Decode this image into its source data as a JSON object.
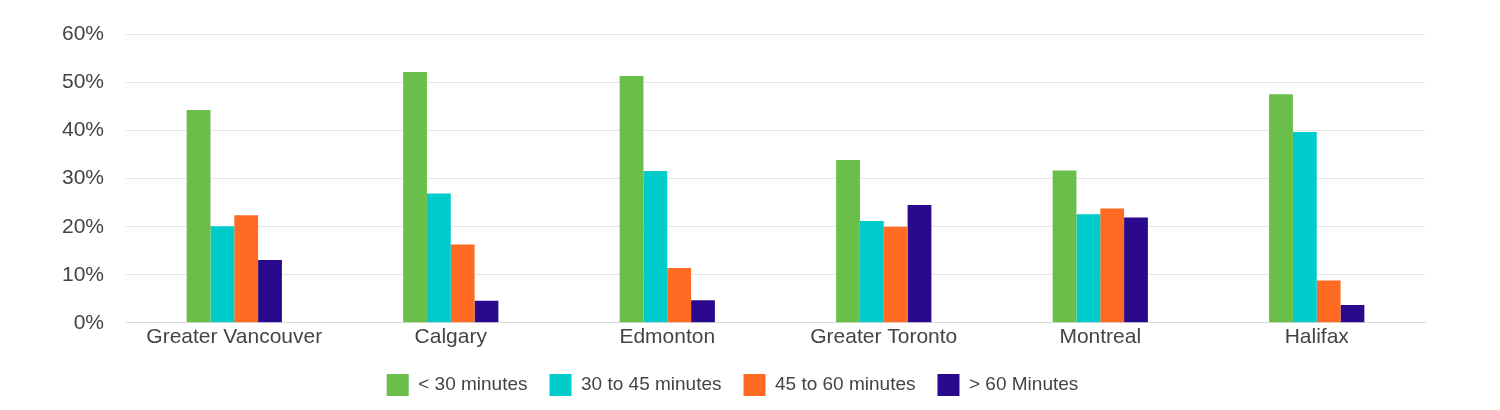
{
  "chart_data": {
    "type": "bar",
    "categories": [
      "Greater Vancouver",
      "Calgary",
      "Edmonton",
      "Greater Toronto",
      "Montreal",
      "Halifax"
    ],
    "series": [
      {
        "name": "< 30 minutes",
        "color": "#6abf4b",
        "values": [
          44.3,
          52.2,
          51.4,
          33.9,
          31.7,
          47.6
        ]
      },
      {
        "name": "30 to 45 minutes",
        "color": "#00cccc",
        "values": [
          20.1,
          26.9,
          31.6,
          21.2,
          22.6,
          39.7
        ]
      },
      {
        "name": "45 to 60 minutes",
        "color": "#ff6b22",
        "values": [
          22.4,
          16.3,
          11.4,
          20.0,
          23.8,
          8.8
        ]
      },
      {
        "name": "> 60 Minutes",
        "color": "#2a0a8c",
        "values": [
          13.1,
          4.6,
          4.7,
          24.5,
          21.9,
          3.7
        ]
      }
    ],
    "ylim": [
      0,
      60
    ],
    "yticks": [
      {
        "value": 0,
        "label": "0%"
      },
      {
        "value": 10,
        "label": "10%"
      },
      {
        "value": 20,
        "label": "20%"
      },
      {
        "value": 30,
        "label": "30%"
      },
      {
        "value": 40,
        "label": "40%"
      },
      {
        "value": 50,
        "label": "50%"
      },
      {
        "value": 60,
        "label": "60%"
      }
    ],
    "grid": true,
    "legend": "bottom"
  }
}
